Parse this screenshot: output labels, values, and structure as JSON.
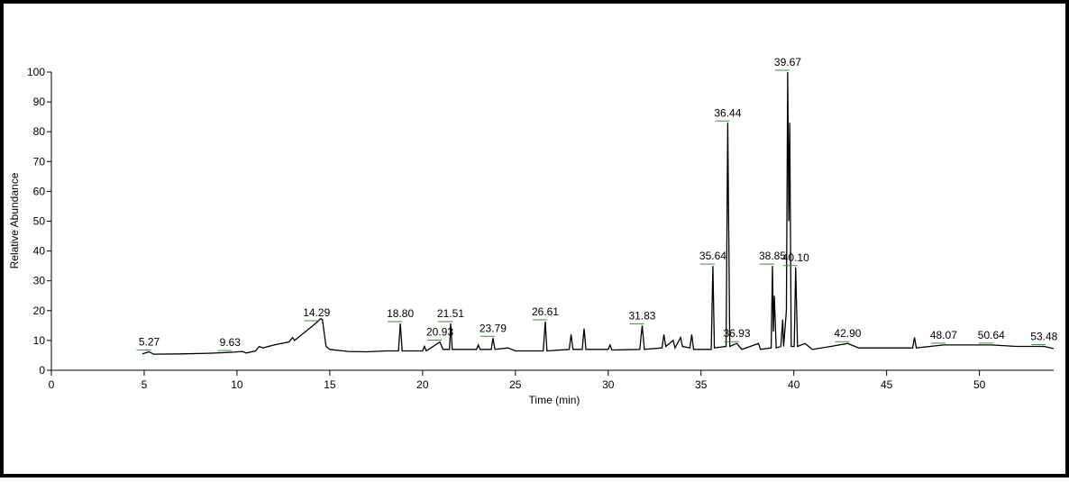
{
  "chart_data": {
    "type": "line",
    "x_label": "Time (min)",
    "y_label": "Relative Abundance",
    "xlim": [
      0,
      54
    ],
    "ylim": [
      0,
      100
    ],
    "xticks": [
      0,
      5,
      10,
      15,
      20,
      25,
      30,
      35,
      40,
      45,
      50
    ],
    "yticks": [
      0,
      10,
      20,
      30,
      40,
      50,
      60,
      70,
      80,
      90,
      100
    ],
    "series": [
      {
        "color": "#000000",
        "x": [
          4.9,
          5.27,
          5.5,
          7,
          8.5,
          9.63,
          10.3,
          10.5,
          11,
          11.2,
          11.4,
          12,
          12.8,
          13,
          13.1,
          13.6,
          14,
          14.29,
          14.5,
          14.6,
          14.8,
          15,
          16,
          17,
          18,
          18.7,
          18.8,
          18.9,
          20,
          20.1,
          20.2,
          20.93,
          21.1,
          21.45,
          21.51,
          21.6,
          22.9,
          23,
          23.1,
          23.7,
          23.79,
          23.9,
          24.6,
          25,
          26.5,
          26.61,
          26.7,
          27.9,
          28,
          28.1,
          28.6,
          28.7,
          28.8,
          30,
          30.1,
          30.2,
          31.7,
          31.83,
          31.95,
          32.9,
          33,
          33.1,
          33.5,
          33.6,
          33.9,
          34,
          34.4,
          34.5,
          34.6,
          35.55,
          35.64,
          35.72,
          36.35,
          36.44,
          36.55,
          36.93,
          37.2,
          38.1,
          38.2,
          38.78,
          38.85,
          38.9,
          38.95,
          39.05,
          39.3,
          39.4,
          39.45,
          39.6,
          39.67,
          39.73,
          39.78,
          39.86,
          40.02,
          40.1,
          40.2,
          40.6,
          41,
          42,
          42.9,
          43.5,
          45,
          46.4,
          46.5,
          46.6,
          48.07,
          50.64,
          52,
          53.48,
          54
        ],
        "values": [
          5.5,
          6.2,
          5.4,
          5.5,
          5.7,
          6,
          6.3,
          5.8,
          6.5,
          8,
          7.5,
          8.5,
          9.5,
          11,
          10,
          12.5,
          14.5,
          16,
          17.3,
          17,
          8,
          7,
          6.3,
          6.2,
          6.5,
          6.5,
          15.7,
          6.5,
          6.5,
          8,
          6.5,
          9.5,
          7,
          7,
          15.7,
          7,
          7,
          8.5,
          7,
          7,
          10.8,
          7,
          7.5,
          6.5,
          6.5,
          16.3,
          6.5,
          7,
          12,
          7,
          7,
          14,
          7,
          7,
          8.5,
          6.8,
          7,
          15,
          7,
          7.5,
          12,
          8,
          10,
          7.5,
          11,
          8,
          7.5,
          12,
          7,
          7,
          35,
          7.5,
          8,
          83,
          8,
          9,
          7,
          9,
          7,
          7.5,
          35,
          13,
          25,
          7.5,
          8,
          17,
          8,
          20,
          100,
          50,
          83,
          8,
          8,
          34.5,
          8,
          9,
          7,
          8,
          9,
          7.5,
          7.5,
          7.5,
          11,
          7.5,
          8.5,
          8.5,
          8,
          8,
          7.3
        ]
      }
    ],
    "annotations": [
      {
        "text": "5.27",
        "x": 5.27,
        "y": 6.2
      },
      {
        "text": "9.63",
        "x": 9.63,
        "y": 6
      },
      {
        "text": "14.29",
        "x": 14.29,
        "y": 16
      },
      {
        "text": "18.80",
        "x": 18.8,
        "y": 15.7
      },
      {
        "text": "20.93",
        "x": 20.93,
        "y": 9.5
      },
      {
        "text": "21.51",
        "x": 21.51,
        "y": 15.7
      },
      {
        "text": "23.79",
        "x": 23.79,
        "y": 10.8
      },
      {
        "text": "26.61",
        "x": 26.61,
        "y": 16.3
      },
      {
        "text": "31.83",
        "x": 31.83,
        "y": 15
      },
      {
        "text": "35.64",
        "x": 35.64,
        "y": 35
      },
      {
        "text": "36.44",
        "x": 36.44,
        "y": 83
      },
      {
        "text": "36.93",
        "x": 36.93,
        "y": 9
      },
      {
        "text": "38.85",
        "x": 38.85,
        "y": 35
      },
      {
        "text": "39.67",
        "x": 39.67,
        "y": 100
      },
      {
        "text": "40.10",
        "x": 40.1,
        "y": 34.5
      },
      {
        "text": "42.90",
        "x": 42.9,
        "y": 9
      },
      {
        "text": "48.07",
        "x": 48.07,
        "y": 8.5
      },
      {
        "text": "50.64",
        "x": 50.64,
        "y": 8.5
      },
      {
        "text": "53.48",
        "x": 53.48,
        "y": 8
      }
    ]
  }
}
